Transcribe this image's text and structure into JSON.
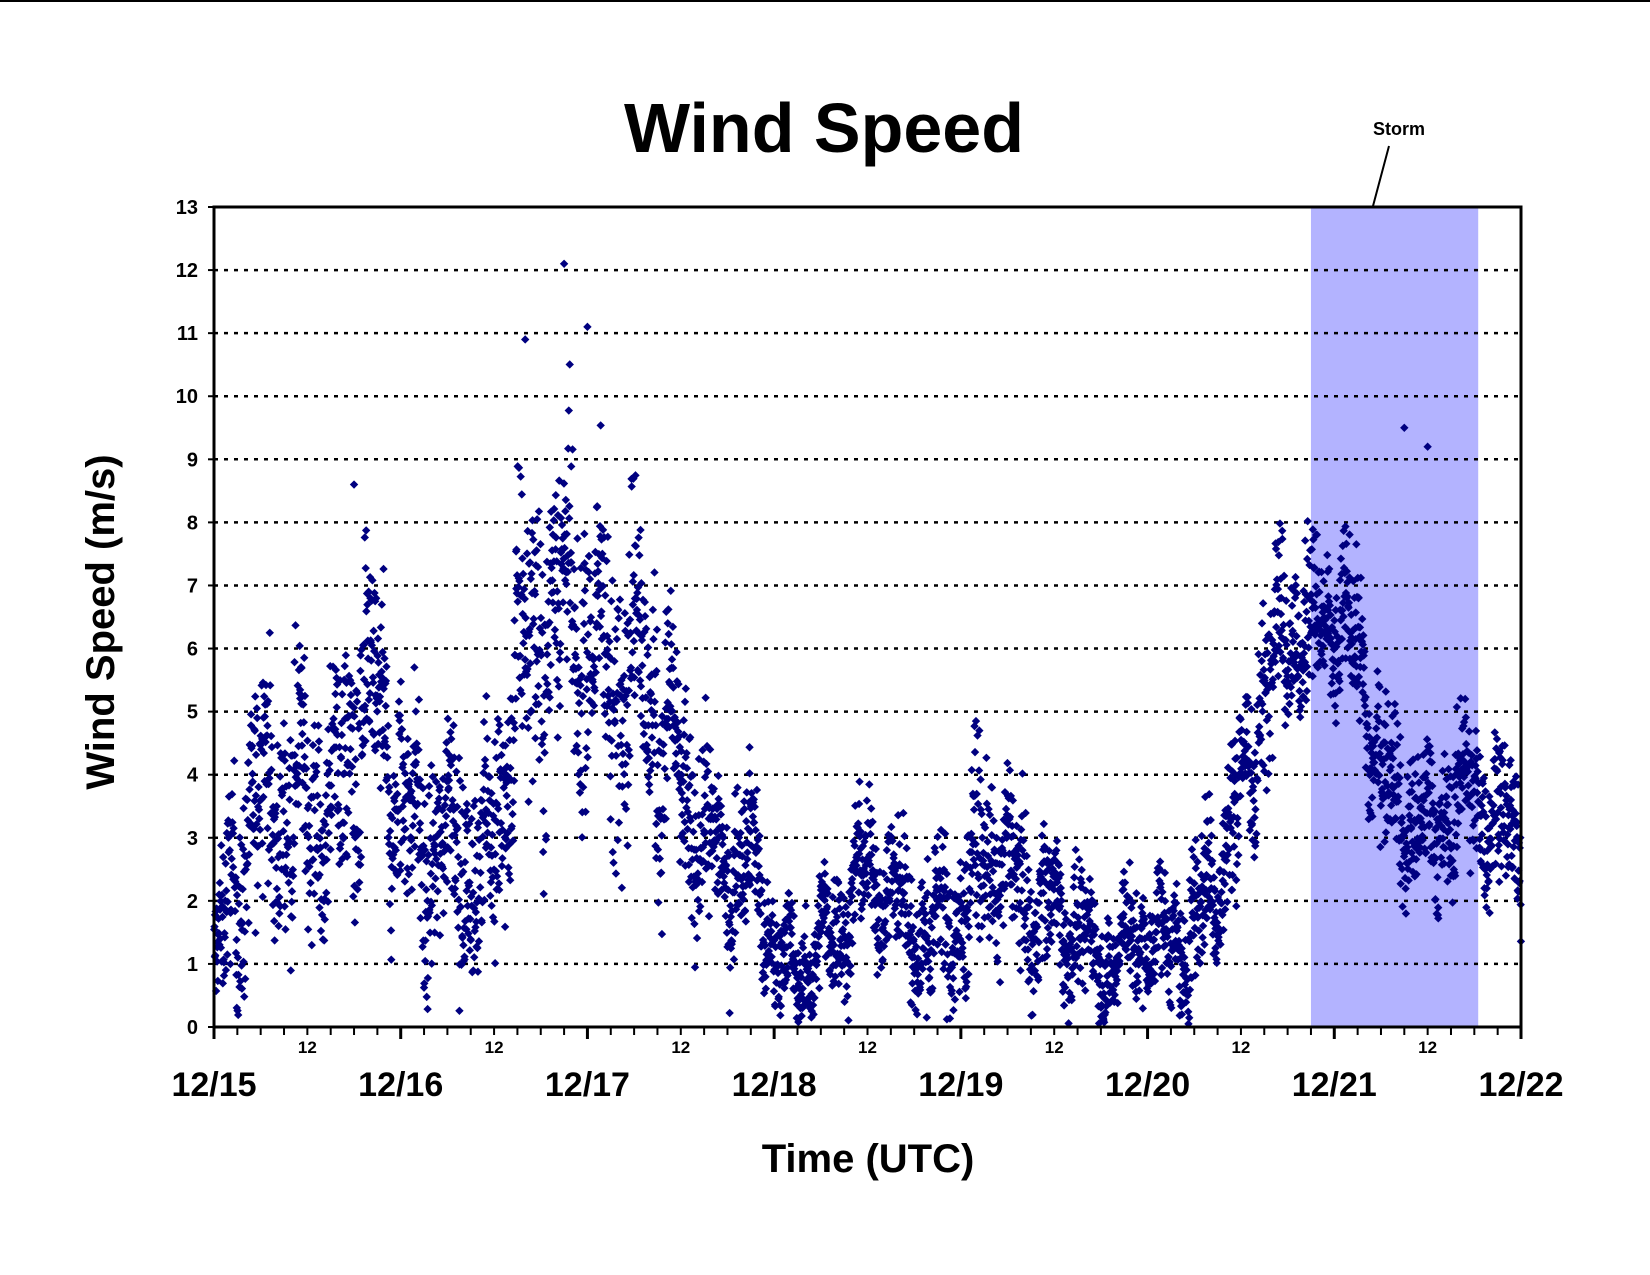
{
  "chart_data": {
    "type": "scatter",
    "title": "Wind Speed",
    "xlabel": "Time (UTC)",
    "ylabel": "Wind Speed (m/s)",
    "ylim": [
      0,
      13
    ],
    "yticks": [
      0,
      1,
      2,
      3,
      4,
      5,
      6,
      7,
      8,
      9,
      10,
      11,
      12,
      13
    ],
    "xlim": [
      "12/15",
      "12/22"
    ],
    "date_tick_labels": [
      "12/15",
      "12/16",
      "12/17",
      "12/18",
      "12/19",
      "12/20",
      "12/21",
      "12/22"
    ],
    "noon_tick_label": "12",
    "grid": "horizontal dotted",
    "marker": "diamond",
    "colors": {
      "points": "#000080",
      "storm_band": "#b3b3ff",
      "axes": "#000000"
    },
    "annotation": {
      "text": "Storm",
      "x_start": "12/20 21:00",
      "x_end": "12/21 18:30"
    },
    "series_profile": {
      "time": [
        "12/15 00:00",
        "12/15 03:00",
        "12/15 06:00",
        "12/15 09:00",
        "12/15 12:00",
        "12/15 15:00",
        "12/15 18:00",
        "12/15 21:00",
        "12/16 00:00",
        "12/16 03:00",
        "12/16 06:00",
        "12/16 09:00",
        "12/16 12:00",
        "12/16 15:00",
        "12/16 18:00",
        "12/16 21:00",
        "12/17 00:00",
        "12/17 03:00",
        "12/17 06:00",
        "12/17 09:00",
        "12/17 12:00",
        "12/17 15:00",
        "12/17 18:00",
        "12/17 21:00",
        "12/18 00:00",
        "12/18 03:00",
        "12/18 06:00",
        "12/18 09:00",
        "12/18 12:00",
        "12/18 15:00",
        "12/18 18:00",
        "12/18 21:00",
        "12/19 00:00",
        "12/19 03:00",
        "12/19 06:00",
        "12/19 09:00",
        "12/19 12:00",
        "12/19 15:00",
        "12/19 18:00",
        "12/19 21:00",
        "12/20 00:00",
        "12/20 03:00",
        "12/20 06:00",
        "12/20 09:00",
        "12/20 12:00",
        "12/20 15:00",
        "12/20 18:00",
        "12/20 21:00",
        "12/21 00:00",
        "12/21 03:00",
        "12/21 06:00",
        "12/21 09:00",
        "12/21 12:00",
        "12/21 15:00",
        "12/21 18:00",
        "12/21 21:00",
        "12/22 00:00"
      ],
      "wind_speed_center": [
        0.8,
        2.5,
        3.8,
        3.5,
        3.8,
        3.2,
        4.8,
        5.0,
        3.5,
        2.8,
        3.0,
        2.5,
        2.8,
        5.5,
        6.5,
        6.8,
        6.0,
        5.8,
        6.0,
        5.0,
        3.8,
        3.0,
        2.5,
        2.8,
        1.2,
        0.8,
        1.2,
        1.8,
        2.5,
        2.2,
        1.5,
        1.5,
        1.8,
        2.8,
        2.5,
        2.0,
        1.8,
        1.5,
        1.0,
        1.2,
        1.5,
        1.2,
        1.5,
        2.5,
        3.5,
        5.5,
        6.5,
        6.2,
        6.5,
        6.0,
        4.0,
        3.5,
        3.0,
        3.5,
        3.8,
        3.2,
        3.0
      ],
      "wind_speed_spread": [
        0.8,
        1.5,
        1.5,
        1.5,
        1.5,
        1.5,
        1.8,
        1.8,
        1.5,
        1.5,
        1.5,
        1.5,
        1.5,
        1.8,
        2.0,
        2.0,
        2.0,
        2.0,
        2.0,
        1.8,
        1.5,
        1.2,
        1.0,
        1.0,
        0.8,
        0.7,
        0.8,
        0.9,
        0.9,
        0.9,
        0.9,
        1.0,
        1.2,
        1.2,
        1.0,
        1.0,
        0.9,
        0.8,
        0.7,
        0.8,
        0.8,
        0.8,
        1.0,
        1.2,
        1.2,
        1.2,
        1.2,
        1.2,
        1.0,
        1.0,
        1.0,
        1.0,
        1.0,
        1.0,
        1.0,
        1.0,
        1.0
      ],
      "notable_peaks": [
        {
          "time": "12/16 21:00",
          "value": 12.1
        },
        {
          "time": "12/17 00:00",
          "value": 11.1
        },
        {
          "time": "12/16 16:00",
          "value": 10.9
        },
        {
          "time": "12/21 09:00",
          "value": 9.5
        },
        {
          "time": "12/21 12:00",
          "value": 9.2
        },
        {
          "time": "12/15 18:00",
          "value": 8.6
        }
      ]
    }
  }
}
